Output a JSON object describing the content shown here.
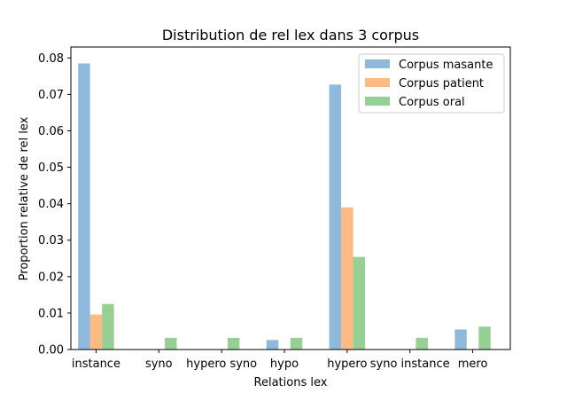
{
  "chart_data": {
    "type": "bar",
    "title": "Distribution de rel lex dans 3 corpus",
    "xlabel": "Relations lex",
    "ylabel": "Proportion relative de rel lex",
    "categories": [
      "instance",
      "syno",
      "hypero syno",
      "hypo",
      "hypero",
      "syno instance",
      "mero"
    ],
    "series": [
      {
        "name": "Corpus masante",
        "color": "#8fb9da",
        "values": [
          0.0785,
          0.0,
          0.0,
          0.0026,
          0.0727,
          0.0,
          0.0055
        ]
      },
      {
        "name": "Corpus patient",
        "color": "#fdbb84",
        "values": [
          0.0096,
          0.0,
          0.0,
          0.0,
          0.039,
          0.0,
          0.0
        ]
      },
      {
        "name": "Corpus oral",
        "color": "#97d095",
        "values": [
          0.0125,
          0.0032,
          0.0032,
          0.0032,
          0.0254,
          0.0032,
          0.0063
        ]
      }
    ],
    "ylim": [
      0,
      0.083
    ],
    "yticks": [
      "0.00",
      "0.01",
      "0.02",
      "0.03",
      "0.04",
      "0.05",
      "0.06",
      "0.07",
      "0.08"
    ],
    "grid": false,
    "legend_position": "top-right"
  }
}
